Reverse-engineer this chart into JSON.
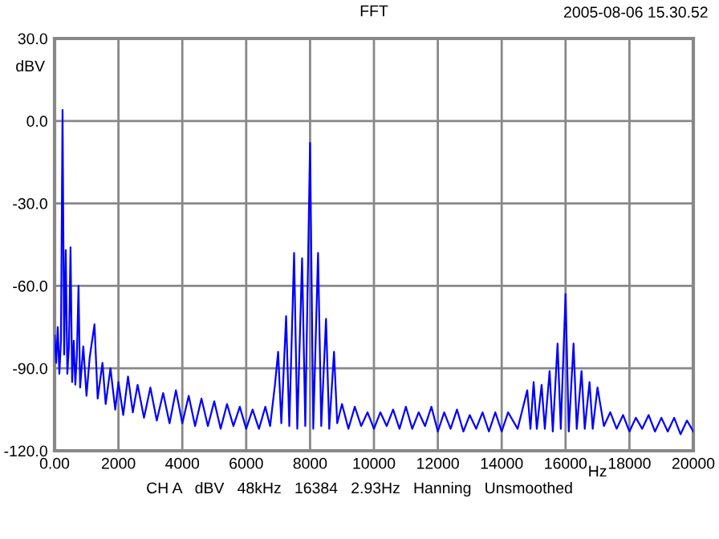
{
  "chart_data": {
    "type": "line",
    "title": "FFT",
    "xlabel": "Hz",
    "ylabel": "dBV",
    "annotations": [
      "2005-08-06 15.30.52",
      "CH A   dBV   48kHz   16384   2.93Hz   Hanning   Unsmoothed"
    ],
    "xlim": [
      0,
      20000
    ],
    "ylim": [
      -120,
      30
    ],
    "xticks": [
      {
        "value": 0,
        "label": "0.00"
      },
      2000,
      4000,
      6000,
      8000,
      10000,
      12000,
      14000,
      16000,
      18000,
      20000
    ],
    "yticks": [
      {
        "value": -120,
        "label": "-120.0"
      },
      {
        "value": -90,
        "label": "-90.0"
      },
      {
        "value": -60,
        "label": "-60.0"
      },
      {
        "value": -30,
        "label": "-30.0"
      },
      {
        "value": 0,
        "label": "0.0"
      },
      {
        "value": 30,
        "label": "30.0"
      }
    ],
    "grid": true,
    "marker": "none",
    "line_style": "solid",
    "series": [
      {
        "color": "#0000ff",
        "x": [
          0,
          50,
          100,
          150,
          200,
          250,
          300,
          350,
          400,
          450,
          500,
          550,
          600,
          650,
          700,
          750,
          800,
          900,
          1000,
          1100,
          1250,
          1350,
          1500,
          1600,
          1750,
          1900,
          2000,
          2150,
          2300,
          2450,
          2600,
          2800,
          3000,
          3200,
          3400,
          3600,
          3800,
          4000,
          4200,
          4400,
          4600,
          4800,
          5000,
          5200,
          5400,
          5600,
          5800,
          6000,
          6200,
          6400,
          6600,
          6750,
          6900,
          7000,
          7100,
          7250,
          7350,
          7500,
          7600,
          7750,
          7850,
          8000,
          8100,
          8250,
          8350,
          8500,
          8600,
          8750,
          8850,
          9000,
          9200,
          9400,
          9600,
          9800,
          10000,
          10200,
          10400,
          10600,
          10800,
          11000,
          11200,
          11400,
          11600,
          11800,
          12000,
          12200,
          12400,
          12600,
          12800,
          13000,
          13200,
          13400,
          13600,
          13800,
          14000,
          14200,
          14500,
          14800,
          14900,
          15000,
          15100,
          15250,
          15350,
          15500,
          15600,
          15750,
          15850,
          16000,
          16100,
          16250,
          16350,
          16500,
          16600,
          16750,
          16850,
          17000,
          17200,
          17400,
          17600,
          17800,
          18000,
          18200,
          18400,
          18600,
          18800,
          19000,
          19200,
          19400,
          19600,
          19800,
          20000
        ],
        "values": [
          -78,
          -88,
          -75,
          -92,
          -80,
          4,
          -85,
          -47,
          -92,
          -82,
          -46,
          -95,
          -80,
          -96,
          -85,
          -60,
          -97,
          -82,
          -100,
          -86,
          -74,
          -101,
          -88,
          -103,
          -90,
          -105,
          -95,
          -107,
          -93,
          -106,
          -96,
          -108,
          -97,
          -109,
          -99,
          -110,
          -98,
          -110,
          -100,
          -111,
          -101,
          -111,
          -102,
          -112,
          -103,
          -111,
          -104,
          -112,
          -105,
          -112,
          -104,
          -111,
          -96,
          -84,
          -110,
          -71,
          -111,
          -48,
          -112,
          -50,
          -111,
          -8,
          -112,
          -48,
          -111,
          -72,
          -112,
          -84,
          -110,
          -103,
          -112,
          -104,
          -111,
          -106,
          -112,
          -106,
          -111,
          -105,
          -112,
          -104,
          -112,
          -106,
          -111,
          -104,
          -113,
          -106,
          -112,
          -105,
          -113,
          -107,
          -112,
          -106,
          -113,
          -106,
          -113,
          -106,
          -112,
          -98,
          -112,
          -95,
          -112,
          -96,
          -112,
          -91,
          -113,
          -81,
          -112,
          -63,
          -113,
          -81,
          -112,
          -91,
          -112,
          -95,
          -112,
          -97,
          -111,
          -106,
          -112,
          -107,
          -113,
          -108,
          -112,
          -107,
          -113,
          -108,
          -113,
          -108,
          -114,
          -109,
          -113
        ]
      }
    ]
  }
}
